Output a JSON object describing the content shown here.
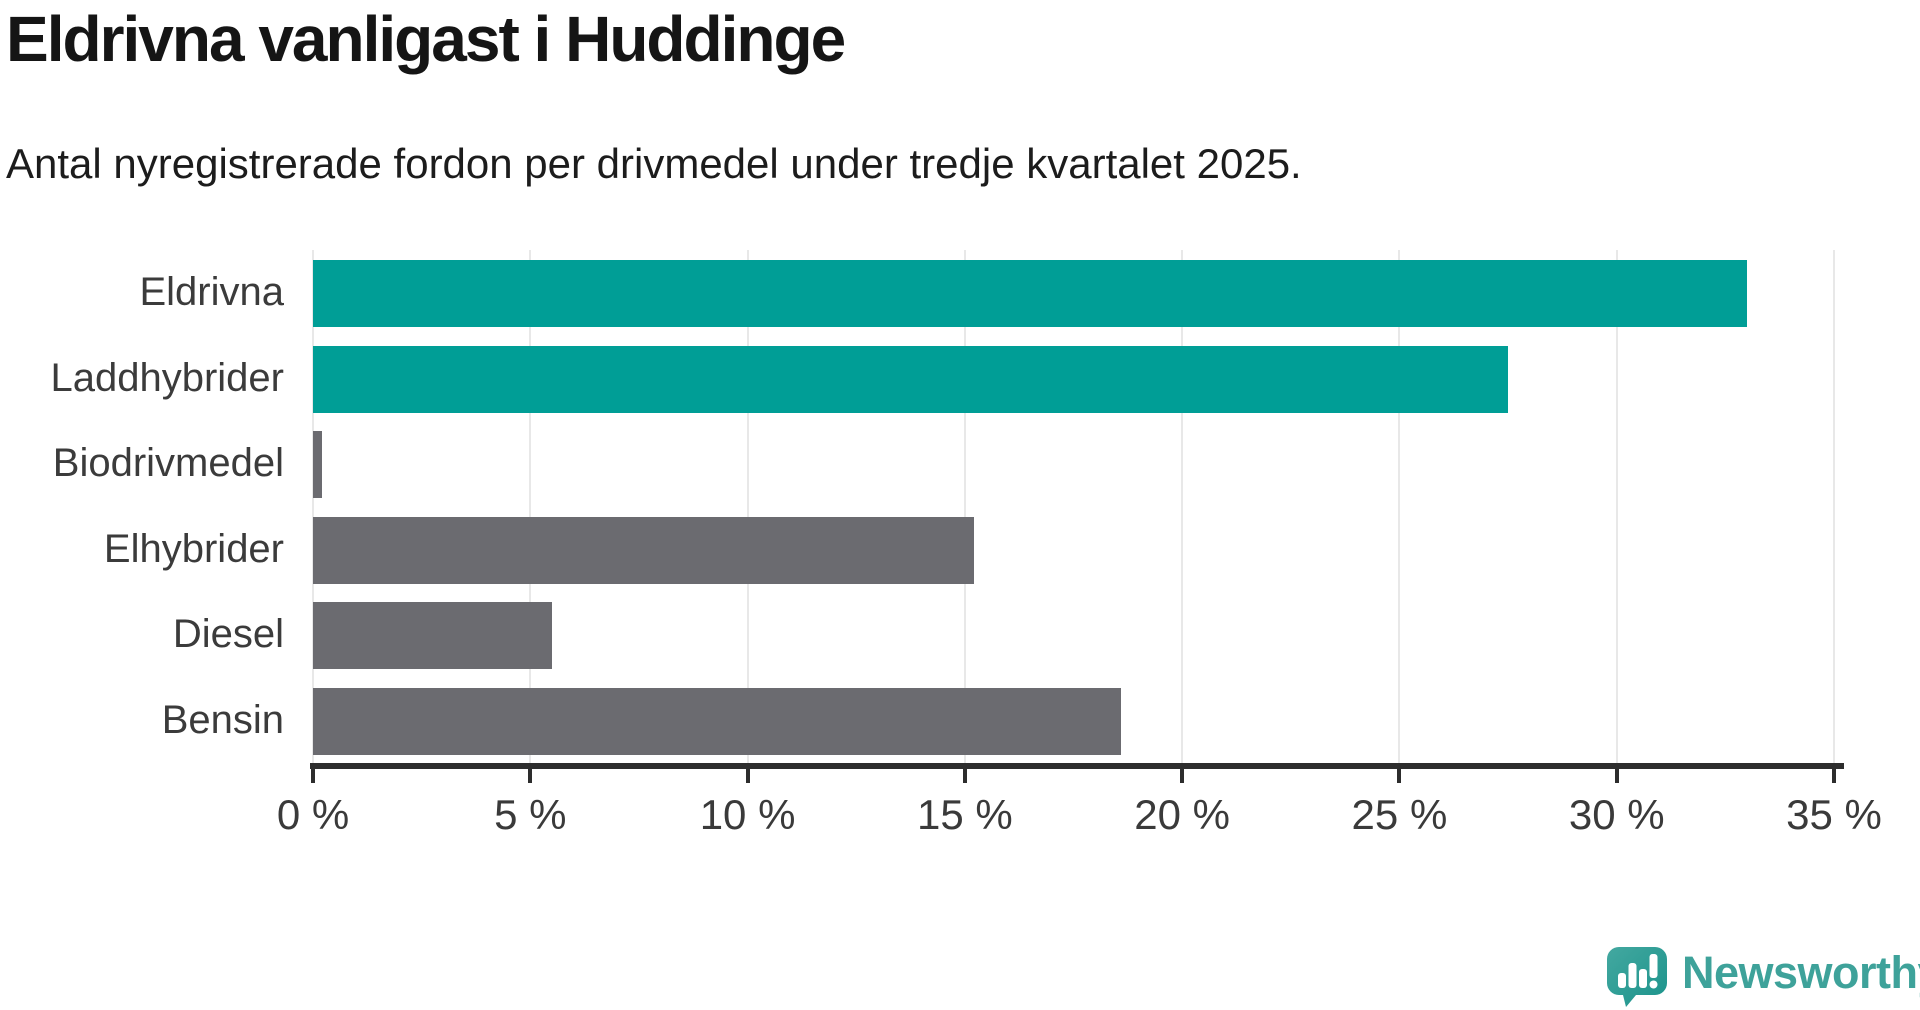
{
  "header": {
    "title": "Eldrivna vanligast i Huddinge",
    "subtitle": "Antal nyregistrerade fordon per drivmedel under tredje kvartalet 2025."
  },
  "chart_data": {
    "type": "bar",
    "orientation": "horizontal",
    "title": "Eldrivna vanligast i Huddinge",
    "subtitle": "Antal nyregistrerade fordon per drivmedel under tredje kvartalet 2025.",
    "categories": [
      "Eldrivna",
      "Laddhybrider",
      "Biodrivmedel",
      "Elhybrider",
      "Diesel",
      "Bensin"
    ],
    "values": [
      33.0,
      27.5,
      0.2,
      15.2,
      5.5,
      18.6
    ],
    "unit": "%",
    "highlighted": [
      true,
      true,
      false,
      false,
      false,
      false
    ],
    "xlim": [
      0,
      35
    ],
    "xticks": [
      0,
      5,
      10,
      15,
      20,
      25,
      30,
      35
    ],
    "xtick_labels": [
      "0 %",
      "5 %",
      "10 %",
      "15 %",
      "20 %",
      "25 %",
      "30 %",
      "35 %"
    ],
    "grid": "vertical",
    "legend": "none",
    "colors": {
      "highlight": "#009e96",
      "muted": "#6b6b70",
      "gridline": "#e8e8e8",
      "axis": "#2d2d2d"
    }
  },
  "branding": {
    "logo_text": "Newsworthy",
    "logo_mark": "newsworthy-speech-bubble-bar-chart-icon",
    "logo_color": "#3ea29a",
    "mark_color": "#2e9d95"
  }
}
